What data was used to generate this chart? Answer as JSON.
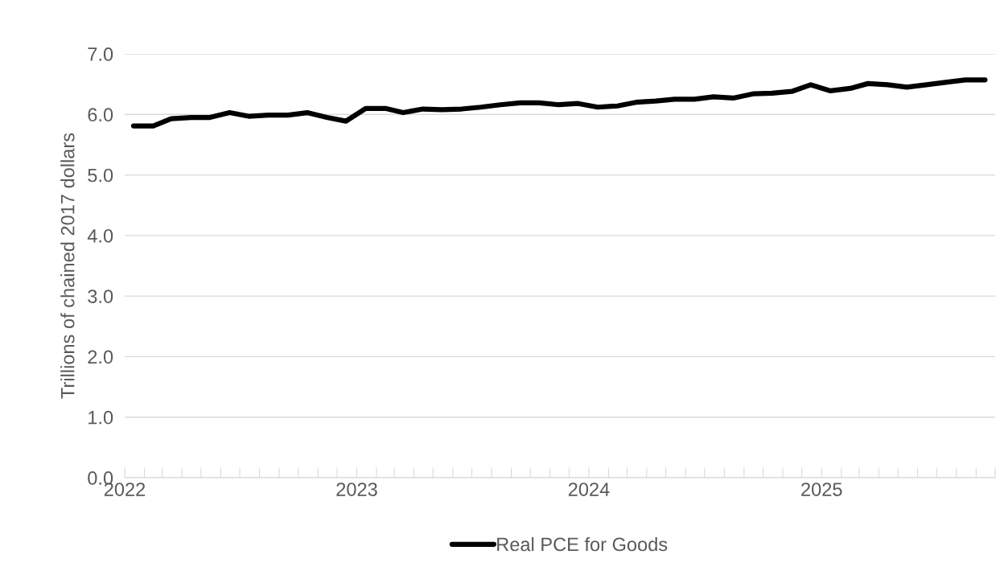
{
  "chart_data": {
    "type": "line",
    "ylabel": "Trillions of chained 2017 dollars",
    "x": [
      "2022-01-15",
      "2022-02-15",
      "2022-03-15",
      "2022-04-15",
      "2022-05-15",
      "2022-06-15",
      "2022-07-15",
      "2022-08-15",
      "2022-09-15",
      "2022-10-15",
      "2022-11-15",
      "2022-12-15",
      "2023-01-15",
      "2023-02-15",
      "2023-03-15",
      "2023-04-15",
      "2023-05-15",
      "2023-06-15",
      "2023-07-15",
      "2023-08-15",
      "2023-09-15",
      "2023-10-15",
      "2023-11-15",
      "2023-12-15",
      "2024-01-15",
      "2024-02-15",
      "2024-03-15",
      "2024-04-15",
      "2024-05-15",
      "2024-06-15",
      "2024-07-15",
      "2024-08-15",
      "2024-09-15",
      "2024-10-15",
      "2024-11-15",
      "2024-12-15",
      "2025-01-15",
      "2025-02-15",
      "2025-03-15",
      "2025-04-15",
      "2025-05-15",
      "2025-06-15",
      "2025-07-15",
      "2025-08-15",
      "2025-09-15"
    ],
    "series": [
      {
        "name": "Real PCE for Goods",
        "color": "#000000",
        "values": [
          5.81,
          5.81,
          5.93,
          5.95,
          5.95,
          6.03,
          5.97,
          5.99,
          5.99,
          6.03,
          5.95,
          5.89,
          6.1,
          6.1,
          6.03,
          6.09,
          6.08,
          6.09,
          6.12,
          6.16,
          6.19,
          6.19,
          6.16,
          6.18,
          6.12,
          6.14,
          6.2,
          6.22,
          6.25,
          6.25,
          6.29,
          6.27,
          6.34,
          6.35,
          6.38,
          6.49,
          6.39,
          6.43,
          6.51,
          6.49,
          6.45,
          6.49,
          6.53,
          6.57,
          6.57
        ]
      }
    ],
    "xlim": [
      "2022-01-01",
      "2025-10-01"
    ],
    "xticks": [
      {
        "value": "2022-01-01",
        "label": "2022"
      },
      {
        "value": "2022-02-01",
        "label": null
      },
      {
        "value": "2022-03-01",
        "label": null
      },
      {
        "value": "2022-04-01",
        "label": null
      },
      {
        "value": "2022-05-01",
        "label": null
      },
      {
        "value": "2022-06-01",
        "label": null
      },
      {
        "value": "2022-07-01",
        "label": null
      },
      {
        "value": "2022-08-01",
        "label": null
      },
      {
        "value": "2022-09-01",
        "label": null
      },
      {
        "value": "2022-10-01",
        "label": null
      },
      {
        "value": "2022-11-01",
        "label": null
      },
      {
        "value": "2022-12-01",
        "label": null
      },
      {
        "value": "2023-01-01",
        "label": "2023"
      },
      {
        "value": "2023-02-01",
        "label": null
      },
      {
        "value": "2023-03-01",
        "label": null
      },
      {
        "value": "2023-04-01",
        "label": null
      },
      {
        "value": "2023-05-01",
        "label": null
      },
      {
        "value": "2023-06-01",
        "label": null
      },
      {
        "value": "2023-07-01",
        "label": null
      },
      {
        "value": "2023-08-01",
        "label": null
      },
      {
        "value": "2023-09-01",
        "label": null
      },
      {
        "value": "2023-10-01",
        "label": null
      },
      {
        "value": "2023-11-01",
        "label": null
      },
      {
        "value": "2023-12-01",
        "label": null
      },
      {
        "value": "2024-01-01",
        "label": "2024"
      },
      {
        "value": "2024-02-01",
        "label": null
      },
      {
        "value": "2024-03-01",
        "label": null
      },
      {
        "value": "2024-04-01",
        "label": null
      },
      {
        "value": "2024-05-01",
        "label": null
      },
      {
        "value": "2024-06-01",
        "label": null
      },
      {
        "value": "2024-07-01",
        "label": null
      },
      {
        "value": "2024-08-01",
        "label": null
      },
      {
        "value": "2024-09-01",
        "label": null
      },
      {
        "value": "2024-10-01",
        "label": null
      },
      {
        "value": "2024-11-01",
        "label": null
      },
      {
        "value": "2024-12-01",
        "label": null
      },
      {
        "value": "2025-01-01",
        "label": "2025"
      },
      {
        "value": "2025-02-01",
        "label": null
      },
      {
        "value": "2025-03-01",
        "label": null
      },
      {
        "value": "2025-04-01",
        "label": null
      },
      {
        "value": "2025-05-01",
        "label": null
      },
      {
        "value": "2025-06-01",
        "label": null
      },
      {
        "value": "2025-07-01",
        "label": null
      },
      {
        "value": "2025-08-01",
        "label": null
      },
      {
        "value": "2025-09-01",
        "label": null
      },
      {
        "value": "2025-10-01",
        "label": null
      }
    ],
    "ylim": [
      0,
      7
    ],
    "yticks": [
      {
        "value": 0,
        "label": "0.0"
      },
      {
        "value": 1,
        "label": "1.0"
      },
      {
        "value": 2,
        "label": "2.0"
      },
      {
        "value": 3,
        "label": "3.0"
      },
      {
        "value": 4,
        "label": "4.0"
      },
      {
        "value": 5,
        "label": "5.0"
      },
      {
        "value": 6,
        "label": "6.0"
      },
      {
        "value": 7,
        "label": "7.0"
      }
    ],
    "grid": "y",
    "legend": "bottom",
    "marker": "none",
    "line_style": "solid"
  }
}
